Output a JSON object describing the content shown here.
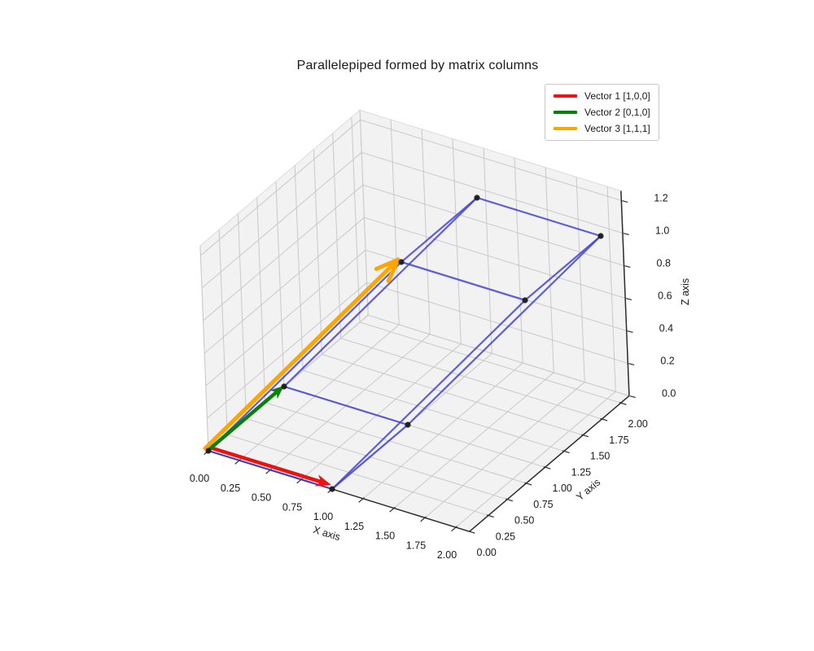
{
  "chart_data": {
    "type": "3d-quiver-wireframe",
    "title": "Parallelepiped formed by matrix columns",
    "axes": {
      "xlabel": "X axis",
      "ylabel": "Y axis",
      "zlabel": "Z axis",
      "xticks": [
        "0.00",
        "0.25",
        "0.50",
        "0.75",
        "1.00",
        "1.25",
        "1.50",
        "1.75",
        "2.00"
      ],
      "yticks": [
        "0.00",
        "0.25",
        "0.50",
        "0.75",
        "1.00",
        "1.25",
        "1.50",
        "1.75",
        "2.00"
      ],
      "zticks": [
        "0.0",
        "0.2",
        "0.4",
        "0.6",
        "0.8",
        "1.0",
        "1.2"
      ],
      "xlim": [
        0,
        2.11
      ],
      "ylim": [
        0,
        2.11
      ],
      "zlim": [
        0,
        1.26
      ],
      "grid": true
    },
    "vectors": [
      {
        "name": "Vector 1",
        "components": [
          1,
          0,
          0
        ],
        "color": "#ee1111",
        "head": "filled"
      },
      {
        "name": "Vector 2",
        "components": [
          0,
          1,
          0
        ],
        "color": "#0a800a",
        "head": "filled"
      },
      {
        "name": "Vector 3",
        "components": [
          1,
          1,
          1
        ],
        "color": "#ffa500",
        "head": "open"
      }
    ],
    "parallelepiped": {
      "vertices": [
        [
          0,
          0,
          0
        ],
        [
          1,
          0,
          0
        ],
        [
          0,
          1,
          0
        ],
        [
          1,
          1,
          0
        ],
        [
          1,
          1,
          1
        ],
        [
          2,
          1,
          1
        ],
        [
          1,
          2,
          1
        ],
        [
          2,
          2,
          1
        ]
      ],
      "edges": [
        [
          0,
          1
        ],
        [
          0,
          2
        ],
        [
          1,
          3
        ],
        [
          2,
          3
        ],
        [
          4,
          5
        ],
        [
          4,
          6
        ],
        [
          5,
          7
        ],
        [
          6,
          7
        ],
        [
          0,
          4
        ],
        [
          1,
          5
        ],
        [
          2,
          6
        ],
        [
          3,
          7
        ]
      ],
      "edge_color": "#3d3dd8",
      "vertex_color": "#1b1b1b"
    },
    "legend": {
      "position": "upper right",
      "entries": [
        {
          "label": "Vector 1 [1,0,0]",
          "color": "#ee1111"
        },
        {
          "label": "Vector 2 [0,1,0]",
          "color": "#0a800a"
        },
        {
          "label": "Vector 3 [1,1,1]",
          "color": "#ffa500"
        }
      ]
    },
    "colors": {
      "background": "#ffffff",
      "pane": "#f2f2f2",
      "pane_edge": "#dcdcdc",
      "grid": "#c9c9c9",
      "spine": "#2b2b2b",
      "tick_label": "#1a1a1a"
    }
  }
}
